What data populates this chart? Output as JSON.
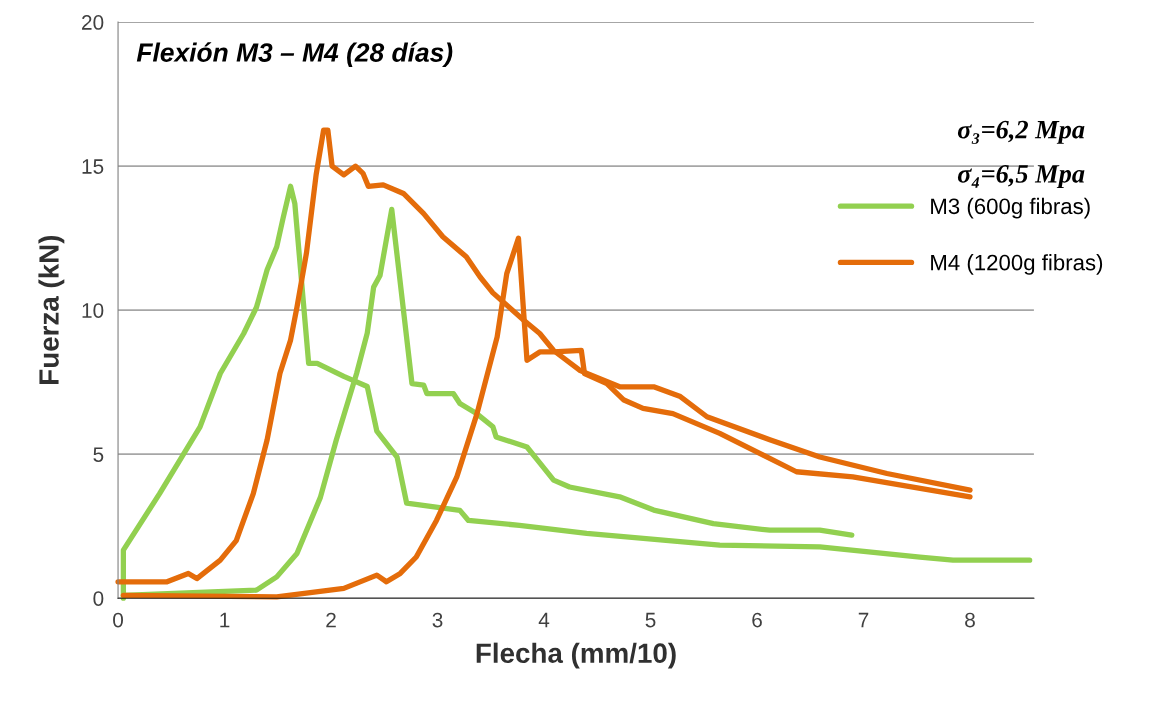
{
  "chart_data": {
    "type": "line",
    "title": "Flexión M3 – M4 (28 días)",
    "xlabel": "Flecha (mm/10)",
    "ylabel": "Fuerza (kN)",
    "xlim": [
      0,
      8.6
    ],
    "xticks": [
      0,
      1,
      2,
      3,
      4,
      5,
      6,
      7,
      8
    ],
    "ylim": [
      0,
      20
    ],
    "yticks": [
      0,
      5,
      10,
      15,
      20
    ],
    "grid": "y",
    "legend": "right",
    "marker": "none",
    "line_style": "solid",
    "annotations": [
      "σ₃=6,2 Mpa",
      "σ₄=6,5 Mpa"
    ],
    "series": [
      {
        "name": "M3 (600g fibras)",
        "color": "#92d050",
        "x": [
          0.05,
          0.05,
          0.39,
          0.77,
          0.96,
          1.18,
          1.3,
          1.4,
          1.49,
          1.55,
          1.62,
          1.66,
          1.79,
          1.87,
          2.12,
          2.34,
          2.43,
          2.62,
          2.71,
          3.21,
          3.29,
          3.77,
          4.4,
          5.65,
          6.59,
          7.53,
          7.84,
          8.56
        ],
        "values": [
          0,
          1.67,
          3.63,
          5.95,
          7.8,
          9.19,
          10.1,
          11.4,
          12.2,
          13.2,
          14.3,
          13.7,
          8.15,
          8.15,
          7.7,
          7.35,
          5.8,
          4.9,
          3.3,
          3.05,
          2.7,
          2.53,
          2.25,
          1.84,
          1.78,
          1.43,
          1.32,
          1.32
        ]
      },
      {
        "color": "#92d050",
        "x": [
          0.05,
          1.3,
          1.49,
          1.68,
          1.9,
          2.05,
          2.24,
          2.34,
          2.4,
          2.46,
          2.57,
          2.76,
          2.87,
          2.9,
          3.15,
          3.21,
          3.37,
          3.52,
          3.55,
          3.84,
          3.96,
          4.09,
          4.24,
          4.71,
          5.03,
          5.59,
          6.12,
          6.59,
          6.89
        ],
        "values": [
          0.1,
          0.28,
          0.74,
          1.55,
          3.5,
          5.5,
          7.8,
          9.2,
          10.8,
          11.2,
          13.5,
          7.45,
          7.4,
          7.1,
          7.1,
          6.76,
          6.4,
          5.95,
          5.6,
          5.25,
          4.7,
          4.1,
          3.86,
          3.52,
          3.06,
          2.59,
          2.36,
          2.36,
          2.19
        ]
      },
      {
        "name": "M4 (1200g fibras)",
        "color": "#e46c0a",
        "x": [
          0,
          0.46,
          0.66,
          0.74,
          0.96,
          1.11,
          1.27,
          1.4,
          1.52,
          1.62,
          1.68,
          1.77,
          1.86,
          1.93,
          1.97,
          2.01,
          2.12,
          2.23,
          2.3,
          2.35,
          2.49,
          2.68,
          2.87,
          3.05,
          3.27,
          3.4,
          3.52,
          3.81,
          3.96,
          4.09,
          4.34,
          4.71,
          5.03,
          5.28,
          5.53,
          6.12,
          6.59,
          7.22,
          8.0
        ],
        "values": [
          0.57,
          0.57,
          0.86,
          0.68,
          1.32,
          2.0,
          3.63,
          5.5,
          7.8,
          8.96,
          10.1,
          12.0,
          14.7,
          16.25,
          16.25,
          15.0,
          14.7,
          15.0,
          14.75,
          14.3,
          14.35,
          14.05,
          13.35,
          12.55,
          11.85,
          11.15,
          10.6,
          9.65,
          9.19,
          8.6,
          7.9,
          7.34,
          7.34,
          7.0,
          6.3,
          5.5,
          4.9,
          4.33,
          3.75
        ]
      },
      {
        "color": "#e46c0a",
        "x": [
          0.05,
          1.49,
          2.12,
          2.43,
          2.52,
          2.65,
          2.8,
          2.99,
          3.18,
          3.37,
          3.56,
          3.65,
          3.76,
          3.84,
          3.96,
          4.09,
          4.35,
          4.38,
          4.59,
          4.75,
          4.93,
          5.21,
          5.65,
          6.03,
          6.37,
          6.9,
          8.0
        ],
        "values": [
          0.1,
          0.05,
          0.34,
          0.8,
          0.57,
          0.86,
          1.43,
          2.7,
          4.2,
          6.4,
          9.07,
          11.27,
          12.5,
          8.26,
          8.55,
          8.55,
          8.6,
          7.8,
          7.45,
          6.88,
          6.59,
          6.41,
          5.72,
          5.02,
          4.39,
          4.21,
          3.52
        ]
      }
    ]
  }
}
